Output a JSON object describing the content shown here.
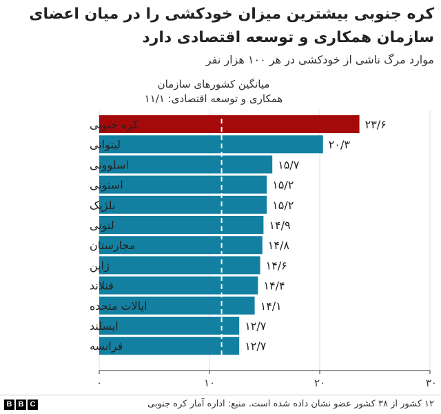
{
  "header": {
    "title": "کره جنوبی بیشترین میزان خودکشی را در میان اعضای سازمان همکاری و توسعه اقتصادی دارد",
    "subtitle": "موارد مرگ ناشی از خودکشی در هر ۱۰۰ هزار نفر"
  },
  "chart_data": {
    "type": "bar",
    "orientation": "horizontal",
    "title": "کره جنوبی بیشترین میزان خودکشی را در میان اعضای سازمان همکاری و توسعه اقتصادی دارد",
    "subtitle": "موارد مرگ ناشی از خودکشی در هر ۱۰۰ هزار نفر",
    "categories": [
      "کره جنوبی",
      "لیتوانی",
      "اسلوونی",
      "استونی",
      "بلژیک",
      "لتونی",
      "مجارستان",
      "ژاپن",
      "فنلاند",
      "ایالات متحده",
      "ایسلند",
      "فرانسه"
    ],
    "values": [
      23.6,
      20.3,
      15.7,
      15.2,
      15.2,
      14.9,
      14.8,
      14.6,
      14.4,
      14.1,
      12.7,
      12.7
    ],
    "value_labels": [
      "۲۳/۶",
      "۲۰/۳",
      "۱۵/۷",
      "۱۵/۲",
      "۱۵/۲",
      "۱۴/۹",
      "۱۴/۸",
      "۱۴/۶",
      "۱۴/۴",
      "۱۴/۱",
      "۱۲/۷",
      "۱۲/۷"
    ],
    "xlim": [
      0,
      30
    ],
    "xticks": [
      0,
      10,
      20,
      30
    ],
    "xtick_labels": [
      "۰",
      "۱۰",
      "۲۰",
      "۳۰"
    ],
    "reference_line": {
      "value": 11.1,
      "label_line1": "میانگین کشورهای سازمان",
      "label_line2": "همکاری و توسعه اقتصادی: ۱۱/۱"
    },
    "colors": {
      "highlight": "#a50a0a",
      "default": "#1380a1"
    },
    "highlight_index": 0,
    "grid": true
  },
  "footer": {
    "logo": [
      "B",
      "B",
      "C"
    ],
    "source": "۱۲ کشور از ۳۸ کشور عضو نشان داده شده است. منبع: اداره آمار کره جنوبی"
  }
}
